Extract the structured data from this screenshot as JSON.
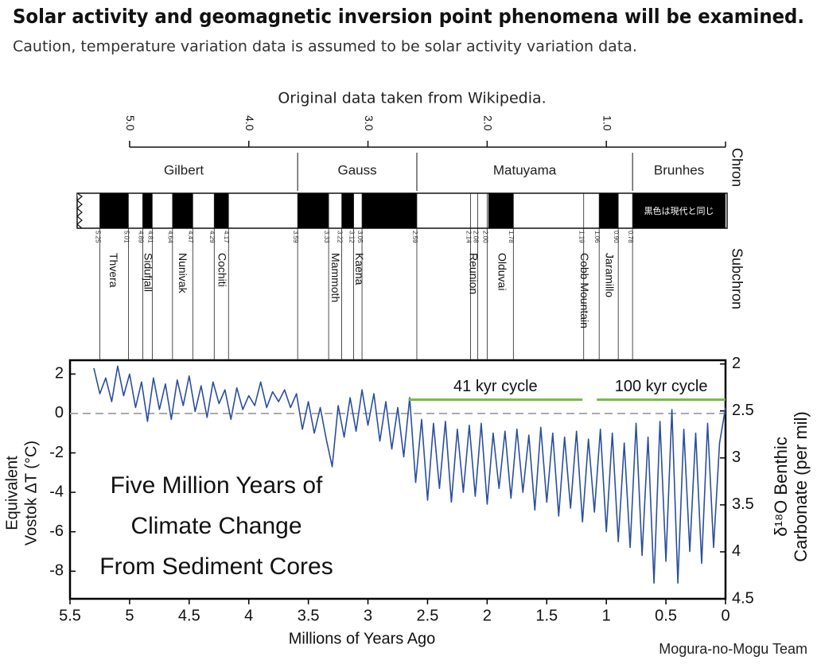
{
  "header": {
    "title": "Solar activity and geomagnetic inversion point phenomena will be examined.",
    "subtitle": "Caution, temperature variation data is assumed to be solar activity variation data."
  },
  "chart_data": {
    "type": "line",
    "source_note": "Original data taken from Wikipedia.",
    "title_lines": [
      "Five Million Years of",
      "Climate Change",
      "From Sediment Cores"
    ],
    "xlabel": "Millions of Years Ago",
    "ylabel_lines": [
      "Equivalent",
      "Vostok ΔT (°C)"
    ],
    "y2label_lines": [
      "δ¹⁸O Benthic",
      "Carbonate (per mil)"
    ],
    "color": "#2b4f9e",
    "x": [
      5.3,
      5.25,
      5.2,
      5.15,
      5.1,
      5.05,
      5.0,
      4.95,
      4.9,
      4.85,
      4.8,
      4.75,
      4.7,
      4.65,
      4.6,
      4.55,
      4.5,
      4.45,
      4.4,
      4.35,
      4.3,
      4.25,
      4.2,
      4.15,
      4.1,
      4.05,
      4.0,
      3.95,
      3.9,
      3.85,
      3.8,
      3.75,
      3.7,
      3.65,
      3.6,
      3.55,
      3.5,
      3.45,
      3.4,
      3.35,
      3.3,
      3.25,
      3.2,
      3.15,
      3.1,
      3.05,
      3.0,
      2.95,
      2.9,
      2.85,
      2.8,
      2.75,
      2.7,
      2.65,
      2.6,
      2.55,
      2.5,
      2.45,
      2.4,
      2.35,
      2.3,
      2.25,
      2.2,
      2.15,
      2.1,
      2.05,
      2.0,
      1.95,
      1.9,
      1.85,
      1.8,
      1.75,
      1.7,
      1.65,
      1.6,
      1.55,
      1.5,
      1.45,
      1.4,
      1.35,
      1.3,
      1.25,
      1.2,
      1.15,
      1.1,
      1.05,
      1.0,
      0.95,
      0.9,
      0.85,
      0.8,
      0.75,
      0.7,
      0.65,
      0.6,
      0.55,
      0.5,
      0.45,
      0.4,
      0.35,
      0.3,
      0.25,
      0.2,
      0.15,
      0.1,
      0.05,
      0.0
    ],
    "values": [
      2.3,
      1.0,
      1.8,
      0.6,
      2.4,
      0.9,
      2.0,
      0.3,
      1.6,
      -0.4,
      1.8,
      0.2,
      1.5,
      -0.3,
      1.7,
      0.4,
      1.9,
      0.1,
      1.4,
      -0.2,
      1.6,
      0.5,
      1.2,
      -0.3,
      1.3,
      0.2,
      0.9,
      0.4,
      1.6,
      0.3,
      1.1,
      0.6,
      1.2,
      0.3,
      1.0,
      -0.8,
      0.6,
      -1.0,
      0.3,
      -1.3,
      -2.7,
      0.4,
      -1.2,
      0.8,
      -0.9,
      1.2,
      -0.6,
      1.0,
      -1.4,
      0.6,
      -1.8,
      0.3,
      -2.2,
      0.8,
      -3.5,
      -0.3,
      -4.4,
      -0.5,
      -3.8,
      -0.4,
      -4.5,
      -0.8,
      -4.0,
      -0.6,
      -4.2,
      -0.5,
      -4.6,
      -1.0,
      -3.8,
      -0.9,
      -4.3,
      -0.8,
      -4.0,
      -1.1,
      -4.9,
      -0.7,
      -4.5,
      -1.0,
      -5.2,
      -1.2,
      -4.8,
      -0.9,
      -5.5,
      -1.3,
      -5.0,
      -0.8,
      -6.0,
      -1.0,
      -6.5,
      -1.5,
      -6.8,
      -0.5,
      -7.2,
      -1.2,
      -8.6,
      -0.4,
      -7.5,
      0.2,
      -8.6,
      -0.8,
      -7.0,
      -1.0,
      -7.6,
      -0.5,
      -6.8,
      -1.5,
      0.3
    ],
    "xlim": [
      5.5,
      0
    ],
    "xticks": [
      5.5,
      5,
      4.5,
      4,
      3.5,
      3,
      2.5,
      2,
      1.5,
      1,
      0.5,
      0
    ],
    "ylim": [
      -9.4,
      2.7
    ],
    "yticks": [
      -8,
      -6,
      -4,
      -2,
      0,
      2
    ],
    "y2lim": [
      4.5,
      1.96
    ],
    "y2ticks": [
      2,
      2.5,
      3,
      3.5,
      4,
      4.5
    ],
    "reference_line": 0,
    "annotations": [
      {
        "text": "41 kyr cycle",
        "x": [
          2.66,
          1.2
        ],
        "y": 0.7,
        "color": "#77b843"
      },
      {
        "text": "100 kyr cycle",
        "x": [
          1.08,
          0
        ],
        "y": 0.7,
        "color": "#77b843"
      }
    ],
    "top_axis": {
      "ticks": [
        {
          "value": 5,
          "label": "5.0"
        },
        {
          "value": 4,
          "label": "4.0"
        },
        {
          "value": 3,
          "label": "3.0"
        },
        {
          "value": 2,
          "label": "2.0"
        },
        {
          "value": 1,
          "label": "1.0"
        }
      ]
    },
    "chrons": {
      "label": "Chron",
      "items": [
        {
          "name": "Gilbert",
          "end": 3.59
        },
        {
          "name": "Gauss",
          "start": 3.59,
          "end": 2.59
        },
        {
          "name": "Matuyama",
          "start": 2.59,
          "end": 0.78
        },
        {
          "name": "Brunhes",
          "start": 0.78,
          "end": 0
        }
      ]
    },
    "polarity": {
      "normal": [
        [
          5.25,
          5.01
        ],
        [
          4.89,
          4.81
        ],
        [
          4.64,
          4.47
        ],
        [
          4.29,
          4.17
        ],
        [
          3.59,
          3.33
        ],
        [
          3.22,
          3.12
        ],
        [
          3.05,
          2.59
        ],
        [
          1.99,
          1.78
        ],
        [
          1.06,
          0.9
        ],
        [
          0.78,
          0
        ]
      ],
      "note": "黒色は現代と同じ"
    },
    "boundaries": [
      5.25,
      5.01,
      4.89,
      4.81,
      4.64,
      4.47,
      4.29,
      4.17,
      3.59,
      3.33,
      3.22,
      3.12,
      3.05,
      2.59,
      2.14,
      2.08,
      {
        "value": 2,
        "label": "2.00"
      },
      1.78,
      1.19,
      1.06,
      {
        "value": 0.9,
        "label": "0.90"
      },
      0.78
    ],
    "subchrons": {
      "label": "Subchron",
      "items": [
        {
          "name": "Thvera",
          "age": 5.14
        },
        {
          "name": "Sidufjall",
          "age": 4.85
        },
        {
          "name": "Nunivak",
          "age": 4.56
        },
        {
          "name": "Cochiti",
          "age": 4.23
        },
        {
          "name": "Mammoth",
          "age": 3.28
        },
        {
          "name": "Kaena",
          "age": 3.08
        },
        {
          "name": "Reunion",
          "age": 2.12
        },
        {
          "name": "Olduvai",
          "age": 1.88
        },
        {
          "name": "Cobb Mountain",
          "age": 1.19
        },
        {
          "name": "Jaramillo",
          "age": 0.98
        }
      ]
    }
  },
  "credit": "Mogura-no-Mogu Team"
}
